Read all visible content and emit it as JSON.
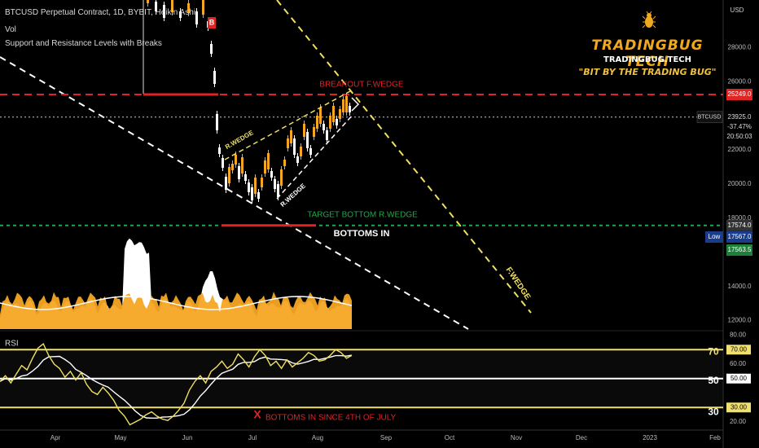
{
  "header": {
    "symbol_line": "BTCUSD Perpetual Contract, 1D, BYBIT, Heikin Ashi",
    "vol_label": "Vol",
    "indicator_label": "Support and Resistance Levels with Breaks"
  },
  "logo": {
    "title": "TRADINGBUG TECH",
    "site": "TRADINGBUG.TECH",
    "tagline": "\"BIT BY THE TRADING BUG\""
  },
  "colors": {
    "background": "#000000",
    "candle_up": "#f5a623",
    "candle_down": "#ffffff",
    "resistance": "#e02424",
    "support": "#22a64a",
    "wedge": "#f0e060",
    "trend": "#ffffff",
    "rsi_line": "#f0e060",
    "rsi_ma": "#ffffff",
    "rsi_band": "#f0e070"
  },
  "chart_data": [
    {
      "type": "candlestick",
      "ylabel": "USD",
      "ylim": [
        11000,
        32500
      ],
      "y_ticks": [
        12000,
        14000,
        18000,
        20000,
        22000,
        26000,
        28000
      ],
      "x_ticks": [
        "Apr",
        "May",
        "Jun",
        "Jul",
        "Aug",
        "Sep",
        "Oct",
        "Nov",
        "Dec",
        "2023",
        "Feb"
      ],
      "price_labels": {
        "resistance": "25249.0",
        "symbol": "BTCUSD",
        "last_price": "23925.0",
        "change": "-37.47%",
        "countdown": "20:50:03",
        "support": "17574.0",
        "low_label": "Low",
        "low_value": "17567.0",
        "other_value": "17563.5",
        "break_marker": "B"
      },
      "levels": {
        "resistance": 25249,
        "support": 17574,
        "last_price": 23925
      },
      "annotations": {
        "breakout": "BREAKOUT F.WEDGE",
        "target": "TARGET BOTTOM R.WEDGE",
        "bottoms": "BOTTOMS IN",
        "r_wedge_upper": "R.WEDGE",
        "r_wedge_lower": "R.WEDGE",
        "f_wedge": "F.WEDGE"
      }
    },
    {
      "type": "line",
      "name_label": "RSI",
      "ylim": [
        18,
        82
      ],
      "y_ticks": [
        "80.00",
        "60.00",
        "20.00"
      ],
      "band_labels": {
        "70": "70.00",
        "50": "50.00",
        "30": "30.00"
      },
      "band_markers": [
        "70",
        "50",
        "30"
      ],
      "levels": [
        70,
        50,
        30
      ],
      "annotation": "BOTTOMS IN SINCE 4TH OF JULY",
      "marker": "X"
    }
  ]
}
